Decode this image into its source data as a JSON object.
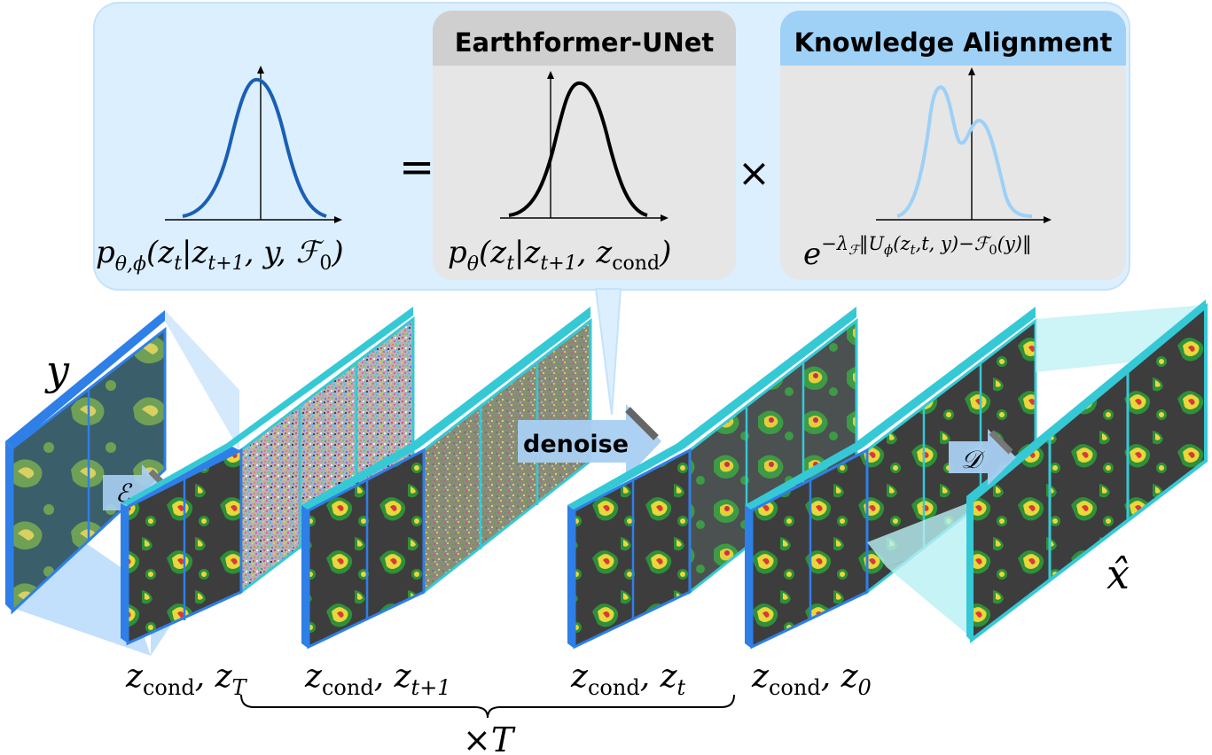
{
  "formula": {
    "lhs_label": "p_{θ,ϕ}(z_t|z_{t+1}, y, F_0)",
    "lhs_p": "p",
    "lhs_sub": "θ,ϕ",
    "lhs_args_1": "(z",
    "lhs_args_1_sub": "t",
    "lhs_args_2": "|z",
    "lhs_args_2_sub": "t+1",
    "lhs_args_3": ", y, ℱ",
    "lhs_args_3_sub": "0",
    "lhs_args_4": ")",
    "equals": "=",
    "times": "×"
  },
  "earthformer_panel": {
    "title": "Earthformer-UNet",
    "p": "p",
    "sub": "θ",
    "args_1": "(z",
    "args_1_sub": "t",
    "args_2": "|z",
    "args_2_sub": "t+1",
    "args_3": ", z",
    "args_3_sub": "cond",
    "args_4": ")"
  },
  "knowledge_panel": {
    "title": "Knowledge Alignment",
    "base": "e",
    "exponent": "−λ",
    "exponent_sub": "ℱ",
    "exponent_rest": "‖U",
    "exponent_rest_sub": "ϕ",
    "exponent_tail": "(z",
    "exponent_tail_sub": "t",
    "exponent_end": ",t, y)−ℱ",
    "exponent_end_sub": "0",
    "exponent_close": "(y)‖"
  },
  "labels": {
    "input": "y",
    "encoder": "ℰ",
    "decoder": "𝒟",
    "denoise": "denoise",
    "output": "x̂",
    "ellipsis_1": "…",
    "ellipsis_2": "…",
    "repeat": "×T"
  },
  "step_labels": [
    {
      "cond": "z",
      "cond_sub": "cond",
      "sep": ", z",
      "z_sub": "T"
    },
    {
      "cond": "z",
      "cond_sub": "cond",
      "sep": ", z",
      "z_sub": "t+1"
    },
    {
      "cond": "z",
      "cond_sub": "cond",
      "sep": ", z",
      "z_sub": "t"
    },
    {
      "cond": "z",
      "cond_sub": "cond",
      "sep": ", z",
      "z_sub": "0"
    }
  ],
  "colors": {
    "panel_bg": "#dcefff",
    "earthformer_bg": "#e6e6e6",
    "earthformer_header": "#cfcfcf",
    "knowledge_header": "#9fd1f7",
    "cond_border": "#2e7fe8",
    "latent_border": "#35c9d6",
    "lhs_curve": "#1a5fb4",
    "ka_curve": "#9dd0f6"
  }
}
